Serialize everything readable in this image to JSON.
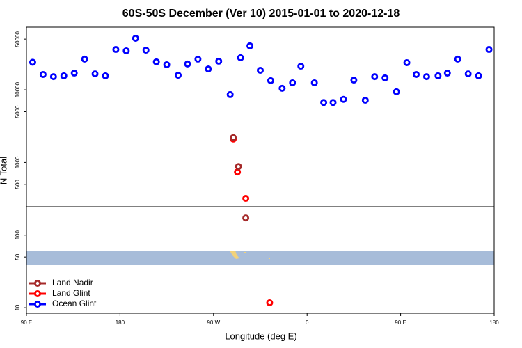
{
  "chart_data": {
    "type": "scatter",
    "title": "60S-50S December (Ver 10)   2015-01-01 to 2020-12-18",
    "x_label": "Longitude (deg E)",
    "y_label": "N Total",
    "log_y": true,
    "legend_position": "bottom-left",
    "xlim": [
      90,
      540
    ],
    "xticks": [
      {
        "value": 90,
        "label": "90 E"
      },
      {
        "value": 180,
        "label": "180"
      },
      {
        "value": 270,
        "label": "90 W"
      },
      {
        "value": 360,
        "label": "0"
      },
      {
        "value": 450,
        "label": "90 E"
      },
      {
        "value": 540,
        "label": "180"
      }
    ],
    "ylim": [
      8.4,
      73000
    ],
    "yticks": [
      10,
      50,
      100,
      500,
      1000,
      5000,
      10000,
      50000
    ],
    "series": [
      {
        "name": "Land Nadir",
        "color": "#a52a2a",
        "x": [
          289,
          294,
          301
        ],
        "values": [
          2200,
          880,
          172
        ]
      },
      {
        "name": "Land Glint",
        "color": "#ff0000",
        "x": [
          289,
          293,
          301,
          324
        ],
        "values": [
          2100,
          740,
          320,
          11.7
        ]
      },
      {
        "name": "Ocean Glint",
        "color": "#0000ff",
        "x": [
          96,
          106,
          116,
          126,
          136,
          146,
          156,
          166,
          176,
          186,
          195,
          205,
          215,
          225,
          236,
          245,
          255,
          265,
          275,
          286,
          296,
          305,
          315,
          325,
          336,
          346,
          354,
          367,
          376,
          385,
          395,
          405,
          416,
          425,
          435,
          446,
          456,
          465,
          475,
          486,
          495,
          505,
          515,
          525,
          535
        ],
        "values": [
          24000,
          16300,
          15200,
          15600,
          17000,
          26500,
          16600,
          15600,
          36000,
          34500,
          51300,
          35200,
          24300,
          22200,
          15900,
          22700,
          26500,
          19400,
          24800,
          8600,
          27700,
          40300,
          18600,
          13400,
          10500,
          12500,
          21200,
          12500,
          6700,
          6700,
          7400,
          13600,
          7200,
          15200,
          14600,
          9400,
          23700,
          16300,
          15200,
          15600,
          17000,
          26500,
          16600,
          15600,
          36000
        ]
      }
    ]
  }
}
